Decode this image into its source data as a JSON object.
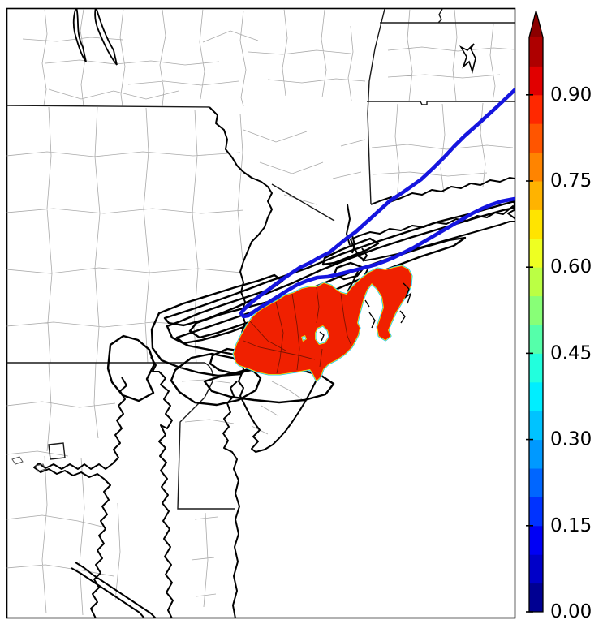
{
  "figure": {
    "background_color": "#ffffff",
    "frame_color": "#000000",
    "description_labels": {
      "map_area": "Mid-Atlantic / Northeast US coastal map with county and state boundaries",
      "red_area": "filled high-probability region over northern New Jersey, New York City and Long Island Sound",
      "black_loops": "overlapping ensemble outline contours over central New Jersey",
      "blue_line": "thick blue hairpin track/river line running northeast"
    }
  },
  "map": {
    "colors": {
      "county_line": "#a9a9a9",
      "state_line": "#1a1a1a",
      "coastline": "#000000",
      "contour_line": "#000000",
      "water_line": "#1515df",
      "probability_fill": "#f02000",
      "fringe_outer": "#19c8ff",
      "fringe_inner": "#ffe000",
      "interior_line": "#7a1200"
    }
  },
  "colorbar": {
    "orientation": "vertical",
    "min": 0.0,
    "max": 1.0,
    "n_segments": 20,
    "extend_max": true,
    "extend_max_color": "#8b0000",
    "segment_colors_bottom_to_top": [
      "#000092",
      "#0000c8",
      "#0000f5",
      "#0033ff",
      "#0066ff",
      "#0099ff",
      "#00c3ff",
      "#00eeff",
      "#22ffdd",
      "#55ffaa",
      "#88ff77",
      "#bbff44",
      "#eeff22",
      "#ffe400",
      "#ffb300",
      "#ff8400",
      "#ff5500",
      "#ff2800",
      "#e10000",
      "#ae0000"
    ],
    "tick_values": [
      0.0,
      0.15,
      0.3,
      0.45,
      0.6,
      0.75,
      0.9
    ],
    "tick_labels": [
      "0.00",
      "0.15",
      "0.30",
      "0.45",
      "0.60",
      "0.75",
      "0.90"
    ]
  },
  "chart_data": {
    "type": "heatmap",
    "subtype": "filled-contour-probability-map",
    "title": "",
    "xlabel": "",
    "ylabel": "",
    "colorbar_range": [
      0.0,
      1.0
    ],
    "colorbar_ticks": [
      0.0,
      0.15,
      0.3,
      0.45,
      0.6,
      0.75,
      0.9
    ],
    "filled_region_approx_value": 0.9,
    "legend_position": "right-colorbar",
    "grid": false
  }
}
